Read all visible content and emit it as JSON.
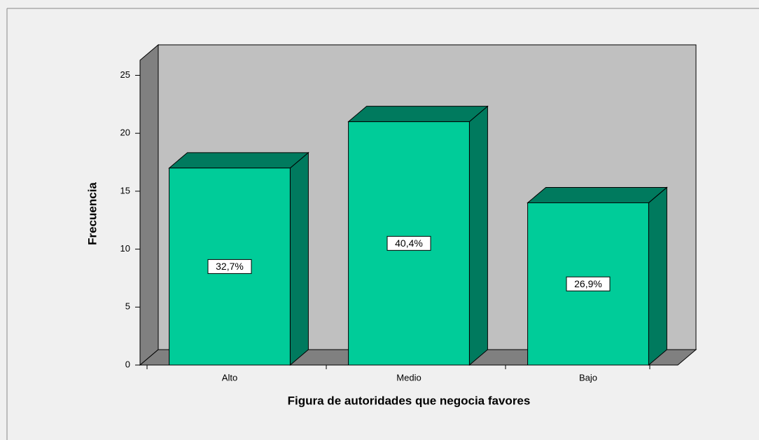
{
  "chart_data": {
    "type": "bar3d",
    "x_label": "Figura de autoridades que negocia favores",
    "y_label": "Frecuencia",
    "categories": [
      "Alto",
      "Medio",
      "Bajo"
    ],
    "values": [
      17,
      21,
      14
    ],
    "percentages": [
      32.7,
      40.4,
      26.9
    ],
    "percentage_labels": [
      "32,7%",
      "40,4%",
      "26,9%"
    ],
    "color": "#00cc99",
    "ylim": [
      0,
      26.3
    ],
    "yticks": [
      0,
      5,
      10,
      15,
      20,
      25
    ]
  }
}
